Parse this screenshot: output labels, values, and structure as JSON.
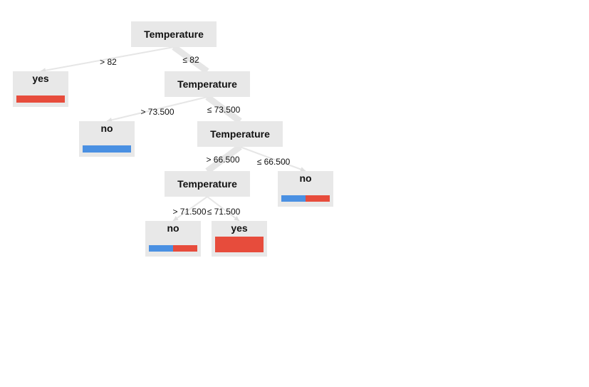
{
  "colors": {
    "yes": "#e74c3c",
    "no": "#4a90e2",
    "node_bg": "#e8e8e8",
    "edge": "#e6e6e6"
  },
  "tree": {
    "nodes": [
      {
        "id": "n1",
        "label": "Temperature",
        "type": "split"
      },
      {
        "id": "n2",
        "label": "yes",
        "type": "leaf",
        "dist": {
          "no": 0,
          "yes": 1
        }
      },
      {
        "id": "n3",
        "label": "Temperature",
        "type": "split"
      },
      {
        "id": "n4",
        "label": "no",
        "type": "leaf",
        "dist": {
          "no": 1,
          "yes": 0
        }
      },
      {
        "id": "n5",
        "label": "Temperature",
        "type": "split"
      },
      {
        "id": "n6",
        "label": "Temperature",
        "type": "split"
      },
      {
        "id": "n7",
        "label": "no",
        "type": "leaf",
        "dist": {
          "no": 0.5,
          "yes": 0.5
        }
      },
      {
        "id": "n8",
        "label": "no",
        "type": "leaf",
        "dist": {
          "no": 0.5,
          "yes": 0.5
        }
      },
      {
        "id": "n9",
        "label": "yes",
        "type": "leaf",
        "dist": {
          "no": 0,
          "yes": 1
        }
      }
    ],
    "edges": [
      {
        "from": "n1",
        "to": "n2",
        "label": "> 82",
        "weight": "thin"
      },
      {
        "from": "n1",
        "to": "n3",
        "label": "≤ 82",
        "weight": "thick"
      },
      {
        "from": "n3",
        "to": "n4",
        "label": "> 73.500",
        "weight": "thin"
      },
      {
        "from": "n3",
        "to": "n5",
        "label": "≤ 73.500",
        "weight": "thick"
      },
      {
        "from": "n5",
        "to": "n6",
        "label": "> 66.500",
        "weight": "thick"
      },
      {
        "from": "n5",
        "to": "n7",
        "label": "≤ 66.500",
        "weight": "thin"
      },
      {
        "from": "n6",
        "to": "n8",
        "label": "> 71.500",
        "weight": "thin"
      },
      {
        "from": "n6",
        "to": "n9",
        "label": "≤ 71.500",
        "weight": "thin"
      }
    ]
  }
}
